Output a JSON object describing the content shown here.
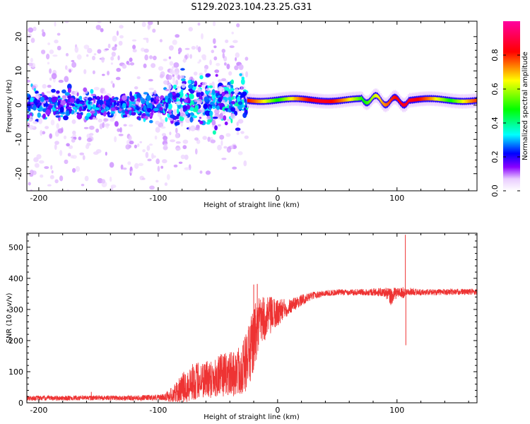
{
  "figure_title": "S129.2023.104.23.25.G31",
  "chart_data": [
    {
      "type": "heatmap",
      "xlabel": "Height of straight line (km)",
      "ylabel": "Frequency (Hz)",
      "xlim": [
        -210,
        167
      ],
      "ylim": [
        -25,
        24.5
      ],
      "xticks": [
        -200,
        -100,
        0,
        100
      ],
      "yticks": [
        -20,
        -10,
        0,
        10,
        20
      ],
      "colorbar": {
        "label": "Normalized spectral amplitude",
        "range": [
          0,
          1
        ],
        "ticks": [
          0.0,
          0.2,
          0.4,
          0.6,
          0.8
        ],
        "colors": [
          "#ffffff",
          "#e9ccff",
          "#8a00ff",
          "#0000ff",
          "#00ffff",
          "#00ff00",
          "#ffff00",
          "#ff0000",
          "#ff00a0"
        ]
      },
      "features": [
        {
          "x_range": [
            -210,
            -95
          ],
          "freq_center": 0,
          "freq_spread": 3,
          "amplitude": 0.25,
          "scatter": "wide"
        },
        {
          "x_range": [
            -95,
            -25
          ],
          "freq_center": 1,
          "freq_spread": 5,
          "amplitude": 0.3,
          "scatter": "medium"
        },
        {
          "x_range": [
            -25,
            167
          ],
          "freq_center": 1.5,
          "freq_spread": 1,
          "amplitude": 0.85,
          "scatter": "narrow"
        }
      ]
    },
    {
      "type": "line",
      "xlabel": "Height of straight line (km)",
      "ylabel": "SNR (10 * v/v)",
      "xlim": [
        -210,
        167
      ],
      "ylim": [
        0,
        545
      ],
      "xticks": [
        -200,
        -100,
        0,
        100
      ],
      "yticks": [
        0,
        100,
        200,
        300,
        400,
        500
      ],
      "series": [
        {
          "color": "#ee3333",
          "x": [
            -210,
            -180,
            -150,
            -120,
            -95,
            -85,
            -75,
            -65,
            -55,
            -45,
            -35,
            -28,
            -22,
            -18,
            -15,
            -10,
            -5,
            0,
            5,
            10,
            20,
            30,
            40,
            50,
            60,
            70,
            80,
            90,
            95,
            100,
            105,
            107,
            110,
            120,
            140,
            167
          ],
          "y": [
            15,
            15,
            16,
            15,
            18,
            30,
            60,
            75,
            80,
            90,
            95,
            120,
            170,
            230,
            260,
            270,
            280,
            290,
            300,
            310,
            330,
            345,
            352,
            355,
            355,
            356,
            356,
            355,
            340,
            355,
            352,
            355,
            358,
            355,
            356,
            357
          ],
          "noise": [
            8,
            8,
            8,
            8,
            10,
            35,
            60,
            60,
            65,
            70,
            75,
            90,
            110,
            100,
            80,
            70,
            60,
            45,
            35,
            25,
            18,
            12,
            10,
            10,
            10,
            10,
            12,
            15,
            30,
            15,
            20,
            10,
            12,
            10,
            10,
            10
          ],
          "spikes": [
            {
              "x": -156,
              "y": 35
            },
            {
              "x": -20,
              "y": 380
            },
            {
              "x": -17,
              "y": 382
            },
            {
              "x": 107,
              "y": 540
            },
            {
              "x": 107.4,
              "y": 185
            }
          ]
        }
      ]
    }
  ]
}
